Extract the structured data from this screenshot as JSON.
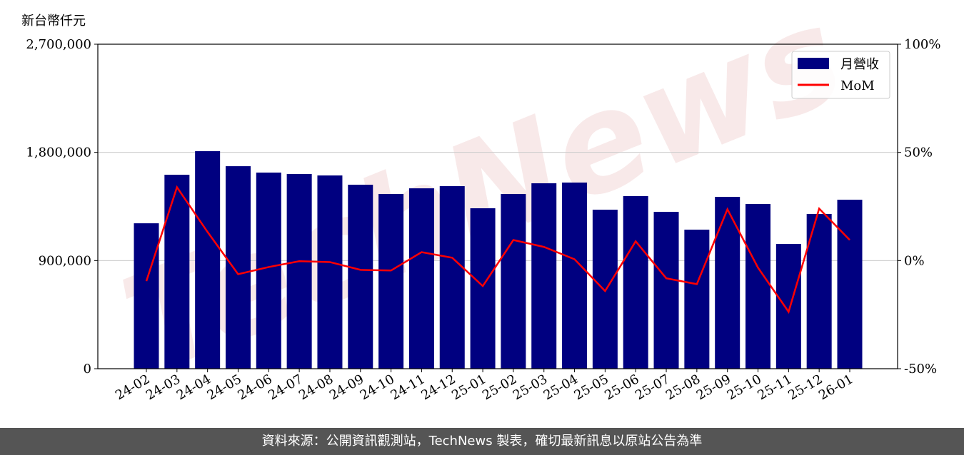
{
  "chart_data": {
    "type": "bar+line",
    "ylabel_left": "新台幣仟元",
    "ylim_left": [
      0,
      2700000
    ],
    "ylim_right": [
      -50,
      100
    ],
    "yticks_left": [
      "0",
      "900,000",
      "1,800,000",
      "2,700,000"
    ],
    "yticks_right": [
      "-50%",
      "0%",
      "50%",
      "100%"
    ],
    "grid": "horizontal",
    "legend_placement": "top-right",
    "categories": [
      "24-02",
      "24-03",
      "24-04",
      "24-05",
      "24-06",
      "24-07",
      "24-08",
      "24-09",
      "24-10",
      "24-11",
      "24-12",
      "25-01",
      "25-02",
      "25-03",
      "25-04",
      "25-05",
      "25-06",
      "25-07",
      "25-08",
      "25-09",
      "25-10",
      "25-11",
      "25-12",
      "26-01"
    ],
    "series": [
      {
        "name": "月營收",
        "type": "bar",
        "axis": "left",
        "color": "#000080",
        "values": [
          1210000,
          1614000,
          1810000,
          1685000,
          1632000,
          1620000,
          1608000,
          1531000,
          1454000,
          1501000,
          1519000,
          1335000,
          1454000,
          1543000,
          1549000,
          1323000,
          1436000,
          1305000,
          1157000,
          1430000,
          1371000,
          1038000,
          1288000,
          1406000
        ]
      },
      {
        "name": "MoM",
        "type": "line",
        "axis": "right",
        "color": "#ff0000",
        "values": [
          -9.5,
          33.9,
          13.2,
          -6.3,
          -3.0,
          -0.3,
          -0.7,
          -4.3,
          -4.6,
          3.9,
          1.3,
          -11.8,
          9.5,
          6.3,
          0.6,
          -14.1,
          8.9,
          -8.2,
          -10.9,
          23.7,
          -3.3,
          -23.7,
          24.0,
          9.5
        ]
      }
    ],
    "watermark": "TechNews"
  },
  "footer": "資料來源：公開資訊觀測站，TechNews 製表，確切最新訊息以原站公告為準"
}
